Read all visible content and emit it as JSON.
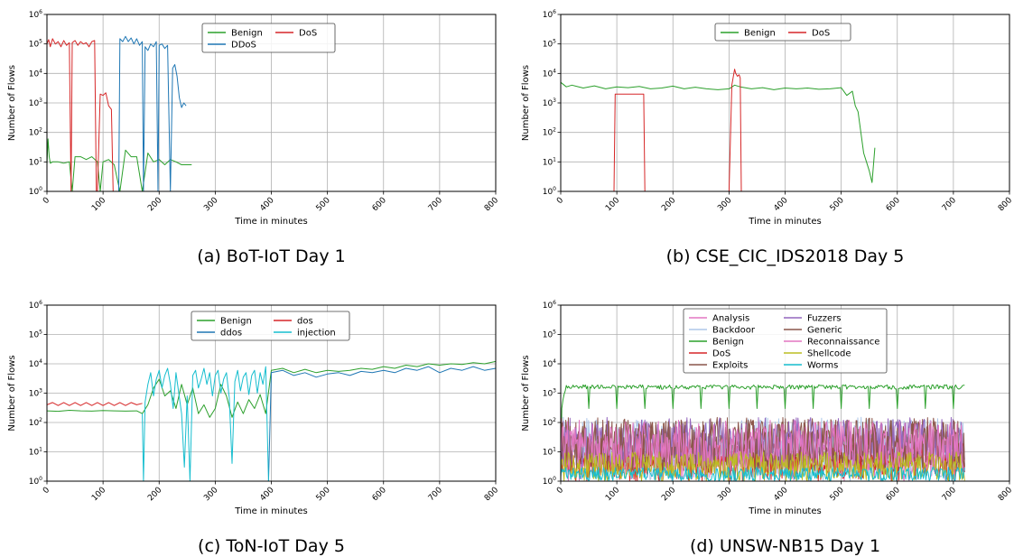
{
  "figure": {
    "y_axis_label": "Number of Flows",
    "x_axis_label": "Time in minutes"
  },
  "chart_data": [
    {
      "type": "line",
      "caption": "(a) BoT-IoT Day 1",
      "xlabel": "Time in minutes",
      "ylabel": "Number of Flows",
      "xlim": [
        0,
        800
      ],
      "ylim": [
        1,
        1000000
      ],
      "yscale": "log",
      "grid": true,
      "x_ticks": [
        0,
        100,
        200,
        300,
        400,
        500,
        600,
        700,
        800
      ],
      "y_tick_exponents": [
        0,
        1,
        2,
        3,
        4,
        5,
        6
      ],
      "legend": {
        "placement": "top-center",
        "columns": 2,
        "entries": [
          "Benign",
          "DDoS",
          "DoS"
        ]
      },
      "series": [
        {
          "name": "Benign",
          "color": "#2ca02c",
          "x": [
            0,
            2,
            4,
            6,
            10,
            20,
            30,
            40,
            45,
            50,
            60,
            70,
            80,
            90,
            95,
            100,
            110,
            120,
            130,
            140,
            150,
            160,
            170,
            180,
            190,
            200,
            210,
            220,
            230,
            240,
            250,
            258
          ],
          "y": [
            8,
            60,
            15,
            9,
            10,
            10,
            9,
            10,
            1,
            15,
            15,
            12,
            15,
            10,
            1,
            10,
            12,
            8,
            1,
            25,
            15,
            15,
            1,
            20,
            10,
            12,
            8,
            12,
            10,
            8,
            8,
            8
          ]
        },
        {
          "name": "DDoS",
          "color": "#1f77b4",
          "x": [
            128,
            130,
            135,
            140,
            145,
            150,
            155,
            160,
            165,
            170,
            172,
            175,
            180,
            185,
            190,
            195,
            198,
            200,
            205,
            210,
            215,
            220,
            224,
            228,
            232,
            236,
            240,
            244,
            248
          ],
          "y": [
            1,
            150000,
            120000,
            180000,
            120000,
            160000,
            100000,
            150000,
            90000,
            120000,
            1,
            80000,
            60000,
            100000,
            80000,
            120000,
            1,
            90000,
            100000,
            70000,
            90000,
            1,
            15000,
            20000,
            8000,
            1500,
            700,
            1000,
            800
          ]
        },
        {
          "name": "DoS",
          "color": "#d62728",
          "x": [
            0,
            3,
            6,
            10,
            15,
            20,
            25,
            30,
            35,
            40,
            43,
            45,
            50,
            55,
            60,
            65,
            70,
            75,
            80,
            85,
            88,
            90,
            95,
            100,
            105,
            110,
            115,
            118
          ],
          "y": [
            100000,
            140000,
            80000,
            150000,
            100000,
            120000,
            80000,
            130000,
            90000,
            110000,
            1,
            110000,
            130000,
            90000,
            120000,
            100000,
            110000,
            80000,
            120000,
            130000,
            1,
            1,
            2000,
            1800,
            2200,
            800,
            600,
            1
          ]
        }
      ]
    },
    {
      "type": "line",
      "caption": "(b) CSE_CIC_IDS2018 Day 5",
      "xlabel": "Time in minutes",
      "ylabel": "Number of Flows",
      "xlim": [
        0,
        800
      ],
      "ylim": [
        1,
        1000000
      ],
      "yscale": "log",
      "grid": true,
      "x_ticks": [
        0,
        100,
        200,
        300,
        400,
        500,
        600,
        700,
        800
      ],
      "y_tick_exponents": [
        0,
        1,
        2,
        3,
        4,
        5,
        6
      ],
      "legend": {
        "placement": "top-center",
        "columns": 2,
        "entries": [
          "Benign",
          "DoS"
        ]
      },
      "series": [
        {
          "name": "Benign",
          "color": "#2ca02c",
          "x": [
            0,
            10,
            20,
            40,
            60,
            80,
            100,
            120,
            140,
            160,
            180,
            200,
            220,
            240,
            260,
            280,
            300,
            310,
            320,
            340,
            360,
            380,
            400,
            420,
            440,
            460,
            480,
            500,
            510,
            520,
            525,
            530,
            535,
            540,
            545,
            550,
            555,
            560
          ],
          "y": [
            5000,
            3500,
            4000,
            3200,
            3800,
            3000,
            3500,
            3300,
            3600,
            3000,
            3200,
            3700,
            3000,
            3400,
            3000,
            2800,
            3000,
            4000,
            3500,
            3000,
            3300,
            2800,
            3200,
            3000,
            3200,
            2900,
            3000,
            3300,
            1800,
            2500,
            800,
            500,
            100,
            20,
            10,
            5,
            2,
            30
          ]
        },
        {
          "name": "DoS",
          "color": "#d62728",
          "x": [
            95,
            97,
            100,
            120,
            140,
            148,
            150,
            300,
            305,
            310,
            312,
            315,
            318,
            320,
            322
          ],
          "y": [
            1,
            2000,
            2000,
            2000,
            2000,
            2000,
            1,
            1,
            4000,
            14000,
            10000,
            8000,
            9000,
            7000,
            1
          ]
        }
      ]
    },
    {
      "type": "line",
      "caption": "(c) ToN-IoT Day 5",
      "xlabel": "Time in minutes",
      "ylabel": "Number of Flows",
      "xlim": [
        0,
        800
      ],
      "ylim": [
        1,
        1000000
      ],
      "yscale": "log",
      "grid": true,
      "x_ticks": [
        0,
        100,
        200,
        300,
        400,
        500,
        600,
        700,
        800
      ],
      "y_tick_exponents": [
        0,
        1,
        2,
        3,
        4,
        5,
        6
      ],
      "legend": {
        "placement": "top-center",
        "columns": 2,
        "entries": [
          "Benign",
          "ddos",
          "dos",
          "injection"
        ]
      },
      "series": [
        {
          "name": "Benign",
          "color": "#2ca02c",
          "x": [
            0,
            20,
            40,
            60,
            80,
            100,
            120,
            140,
            160,
            170,
            180,
            190,
            200,
            210,
            220,
            230,
            240,
            250,
            260,
            270,
            280,
            290,
            300,
            310,
            320,
            330,
            340,
            350,
            360,
            370,
            380,
            390,
            400,
            420,
            440,
            460,
            480,
            500,
            520,
            540,
            560,
            580,
            600,
            620,
            640,
            660,
            680,
            700,
            720,
            740,
            760,
            780,
            800
          ],
          "y": [
            250,
            240,
            260,
            250,
            245,
            255,
            250,
            245,
            250,
            200,
            400,
            1500,
            3000,
            800,
            1200,
            300,
            2000,
            400,
            1500,
            200,
            400,
            150,
            300,
            2000,
            800,
            150,
            500,
            200,
            600,
            300,
            900,
            200,
            6000,
            7000,
            5000,
            6500,
            5000,
            6000,
            5500,
            6000,
            7000,
            6500,
            8000,
            7000,
            9000,
            8000,
            10000,
            9000,
            10000,
            9500,
            11000,
            10000,
            12000
          ]
        },
        {
          "name": "ddos",
          "color": "#1f77b4",
          "x": [
            395,
            400,
            420,
            440,
            460,
            480,
            500,
            520,
            540,
            560,
            580,
            600,
            620,
            640,
            660,
            680,
            700,
            720,
            740,
            760,
            780,
            800
          ],
          "y": [
            1,
            5000,
            6000,
            4000,
            5000,
            3500,
            4500,
            5000,
            4000,
            5500,
            5000,
            6000,
            5000,
            7000,
            6000,
            8000,
            5000,
            7000,
            6000,
            8000,
            6000,
            7000
          ]
        },
        {
          "name": "dos",
          "color": "#d62728",
          "x": [
            0,
            10,
            20,
            30,
            40,
            50,
            60,
            70,
            80,
            90,
            100,
            110,
            120,
            130,
            140,
            150,
            160,
            170
          ],
          "y": [
            400,
            480,
            380,
            480,
            380,
            480,
            380,
            480,
            380,
            480,
            380,
            480,
            380,
            480,
            380,
            480,
            400,
            450
          ]
        },
        {
          "name": "injection",
          "color": "#17becf",
          "x": [
            170,
            172,
            175,
            180,
            185,
            190,
            195,
            200,
            205,
            210,
            215,
            220,
            225,
            230,
            235,
            240,
            245,
            250,
            255,
            260,
            265,
            270,
            275,
            280,
            285,
            290,
            295,
            300,
            305,
            310,
            315,
            320,
            325,
            330,
            335,
            340,
            345,
            350,
            355,
            360,
            365,
            370,
            375,
            380,
            385,
            390,
            395
          ],
          "y": [
            200,
            1,
            500,
            2000,
            5000,
            800,
            3000,
            6000,
            1500,
            4000,
            7000,
            2000,
            300,
            5000,
            1000,
            200,
            3,
            800,
            1,
            4000,
            6000,
            1500,
            3000,
            7000,
            2000,
            5000,
            800,
            4000,
            6000,
            1000,
            3000,
            5000,
            700,
            4,
            2500,
            6000,
            1200,
            3500,
            5000,
            900,
            4000,
            6000,
            1000,
            5000,
            2000,
            8000,
            1
          ]
        }
      ]
    },
    {
      "type": "line",
      "caption": "(d) UNSW-NB15 Day 1",
      "xlabel": "Time in minutes",
      "ylabel": "Number of Flows",
      "xlim": [
        0,
        800
      ],
      "ylim": [
        1,
        1000000
      ],
      "yscale": "log",
      "grid": true,
      "x_ticks": [
        0,
        100,
        200,
        300,
        400,
        500,
        600,
        700,
        800
      ],
      "y_tick_exponents": [
        0,
        1,
        2,
        3,
        4,
        5,
        6
      ],
      "legend": {
        "placement": "top-center",
        "columns": 2,
        "entries": [
          "Analysis",
          "Backdoor",
          "Benign",
          "DoS",
          "Exploits",
          "Fuzzers",
          "Generic",
          "Reconnaissance",
          "Shellcode",
          "Worms"
        ]
      },
      "series": [
        {
          "name": "Analysis",
          "color": "#e377c2",
          "x_end": 720,
          "level_min": 1,
          "level_max": 50
        },
        {
          "name": "Backdoor",
          "color": "#aec7e8",
          "x_end": 720,
          "level_min": 1,
          "level_max": 150
        },
        {
          "name": "Benign",
          "color": "#2ca02c",
          "x_end": 720,
          "level": 1600,
          "dip_min": 300
        },
        {
          "name": "DoS",
          "color": "#d62728",
          "x_end": 720,
          "level_min": 1,
          "level_max": 20
        },
        {
          "name": "Exploits",
          "color": "#8c564b",
          "x_end": 720,
          "level_min": 2,
          "level_max": 150
        },
        {
          "name": "Fuzzers",
          "color": "#9467bd",
          "x_end": 720,
          "level_min": 3,
          "level_max": 150
        },
        {
          "name": "Generic",
          "color": "#8c564b",
          "x_end": 720,
          "level_min": 2,
          "level_max": 120
        },
        {
          "name": "Reconnaissance",
          "color": "#e377c2",
          "x_end": 720,
          "level_min": 2,
          "level_max": 120
        },
        {
          "name": "Shellcode",
          "color": "#bcbd22",
          "x_end": 720,
          "level_min": 1,
          "level_max": 10
        },
        {
          "name": "Worms",
          "color": "#17becf",
          "x_end": 720,
          "level_min": 1,
          "level_max": 3
        }
      ]
    }
  ]
}
